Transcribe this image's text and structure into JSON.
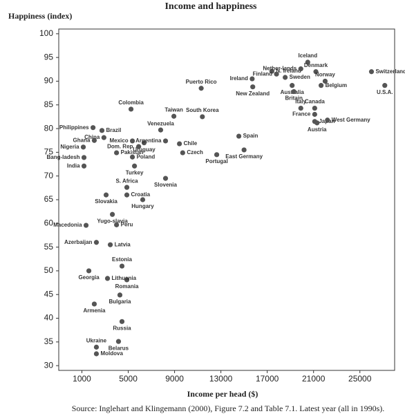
{
  "chart_data": {
    "type": "scatter",
    "title": "Income and happiness",
    "y_label": "Happiness (index)",
    "x_label": "Income per head ($)",
    "source": "Source: Inglehart and Klingemann (2000), Figure 7.2 and Table 7.1. Latest year (all in 1990s).",
    "color": "#555555",
    "xlim": [
      -1000,
      28000
    ],
    "ylim": [
      29,
      101
    ],
    "xticks": [
      1000,
      5000,
      9000,
      13000,
      17000,
      21000,
      25000
    ],
    "yticks": [
      30,
      35,
      40,
      45,
      50,
      55,
      60,
      65,
      70,
      75,
      80,
      85,
      90,
      95,
      100
    ],
    "points": [
      "Iceland",
      "N. Ireland",
      "Nether-lands",
      "Ireland",
      "Finland",
      "Sweden",
      "Denmark",
      "Switzerland",
      "Norway",
      "Belgium",
      "U.S.A.",
      "Australia",
      "New Zealand",
      "Britain",
      "Puerto Rico",
      "Canada",
      "Italy",
      "France",
      "Japan",
      "West Germany",
      "Austria",
      "Colombia",
      "Taiwan",
      "South Korea",
      "Philippines",
      "Brazil",
      "Venezuela",
      "Uruguay",
      "Mexico",
      "Ghana",
      "China",
      "Nigeria",
      "Dom. Rep.",
      "Argentina",
      "Chile",
      "Spain",
      "East Germany",
      "Portugal",
      "Czech",
      "Poland",
      "Bang-ladesh",
      "Pakistan",
      "India",
      "Turkey",
      "Slovenia",
      "S. Africa",
      "Croatia",
      "Slovakia",
      "Hungary",
      "Yugo-slavia",
      "Macedonia",
      "Peru",
      "Azerbaijan",
      "Latvia",
      "Estonia",
      "Georgia",
      "Romania",
      "Lithuania",
      "Armenia",
      "Bulgaria",
      "Russia",
      "Ukraine",
      "Belarus",
      "Moldova"
    ],
    "x": [
      20500,
      17400,
      19900,
      15700,
      17800,
      18550,
      21200,
      26000,
      22000,
      21650,
      27150,
      19150,
      15750,
      19300,
      11300,
      21100,
      19900,
      21100,
      21100,
      22200,
      21300,
      5240,
      8940,
      11400,
      1960,
      2730,
      7800,
      6370,
      5360,
      2070,
      2900,
      1120,
      5900,
      8220,
      9420,
      14550,
      15000,
      12640,
      9700,
      5360,
      1180,
      3990,
      1180,
      5540,
      8220,
      4880,
      4880,
      3090,
      6250,
      3630,
      1360,
      3990,
      2250,
      3450,
      4460,
      1600,
      4880,
      3210,
      2070,
      4280,
      4460,
      2250,
      4160,
      2250
    ],
    "y": [
      94.0,
      92.1,
      92.6,
      90.5,
      91.5,
      90.8,
      92.0,
      92.0,
      90.0,
      89.1,
      89.1,
      89.1,
      88.8,
      87.8,
      88.5,
      84.3,
      84.3,
      83.0,
      81.5,
      81.8,
      81.2,
      84.1,
      82.6,
      82.5,
      80.2,
      79.6,
      79.7,
      77.0,
      77.4,
      77.5,
      78.1,
      76.1,
      76.2,
      77.4,
      76.8,
      78.4,
      75.5,
      74.5,
      74.9,
      74.0,
      73.9,
      74.9,
      72.1,
      72.1,
      69.5,
      67.6,
      66.0,
      66.0,
      65.0,
      61.9,
      59.6,
      59.7,
      56.0,
      55.5,
      51.0,
      50.0,
      48.1,
      48.4,
      43.0,
      44.9,
      39.3,
      33.9,
      35.1,
      32.5
    ]
  }
}
